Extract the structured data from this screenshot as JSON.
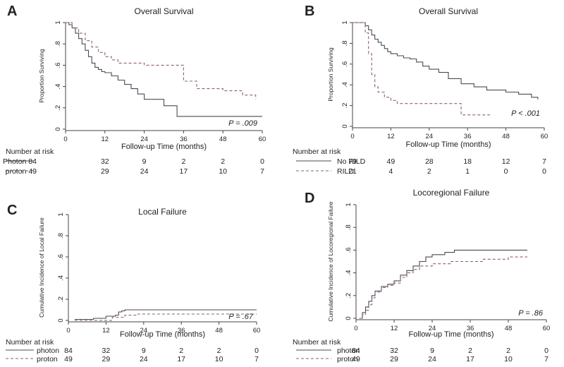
{
  "chart_data": [
    {
      "panel": "A",
      "type": "line",
      "title": "Overall Survival",
      "xlabel": "Follow-up Time (months)",
      "ylabel": "Proportion Surviving",
      "xlim": [
        0,
        60
      ],
      "ylim": [
        0,
        1
      ],
      "x_ticks": [
        "0",
        "12",
        "24",
        "36",
        "48",
        "60"
      ],
      "y_ticks": [
        "0",
        ".2",
        ".4",
        ".6",
        ".8",
        "1"
      ],
      "p_value": "P = .009",
      "series": [
        {
          "style": "solid",
          "x": [
            0,
            1,
            2,
            3,
            4,
            5,
            6,
            7,
            8,
            9,
            10,
            11,
            12,
            14,
            16,
            18,
            20,
            22,
            24,
            30,
            34,
            60
          ],
          "y": [
            1.0,
            0.98,
            0.95,
            0.9,
            0.85,
            0.8,
            0.74,
            0.68,
            0.62,
            0.58,
            0.56,
            0.54,
            0.53,
            0.5,
            0.46,
            0.42,
            0.38,
            0.33,
            0.28,
            0.22,
            0.12,
            0.12
          ]
        },
        {
          "style": "dashed",
          "x": [
            0,
            2,
            4,
            6,
            8,
            10,
            12,
            14,
            16,
            18,
            20,
            24,
            36,
            40,
            48,
            54,
            58
          ],
          "y": [
            1.0,
            0.95,
            0.9,
            0.83,
            0.77,
            0.72,
            0.68,
            0.65,
            0.62,
            0.62,
            0.62,
            0.6,
            0.45,
            0.38,
            0.36,
            0.32,
            0.28
          ]
        }
      ],
      "risk_table": {
        "header": "Number at risk",
        "rows": [
          {
            "label": "Photon 84",
            "style": "solid",
            "values": [
              "32",
              "9",
              "2",
              "2",
              "0"
            ]
          },
          {
            "label": "proton 49",
            "style": "dashed",
            "values": [
              "29",
              "24",
              "17",
              "10",
              "7"
            ]
          }
        ]
      }
    },
    {
      "panel": "B",
      "type": "line",
      "title": "Overall Survival",
      "xlabel": "Follow-up Time (months)",
      "ylabel": "Proportion Surviving",
      "xlim": [
        0,
        60
      ],
      "ylim": [
        0,
        1
      ],
      "x_ticks": [
        "0",
        "12",
        "24",
        "36",
        "48",
        "60"
      ],
      "y_ticks": [
        "0",
        ".2",
        ".4",
        ".6",
        ".8",
        "1"
      ],
      "p_value": "P < .001",
      "series": [
        {
          "style": "solid",
          "x": [
            0,
            3,
            4,
            5,
            6,
            7,
            8,
            9,
            10,
            11,
            12,
            14,
            16,
            18,
            20,
            22,
            24,
            27,
            30,
            34,
            38,
            42,
            48,
            52,
            56,
            58
          ],
          "y": [
            1.0,
            1.0,
            0.97,
            0.93,
            0.88,
            0.84,
            0.81,
            0.78,
            0.75,
            0.72,
            0.7,
            0.68,
            0.66,
            0.65,
            0.62,
            0.58,
            0.55,
            0.52,
            0.46,
            0.41,
            0.38,
            0.35,
            0.33,
            0.31,
            0.28,
            0.26
          ]
        },
        {
          "style": "dashed",
          "x": [
            0,
            3,
            4,
            5,
            6,
            7,
            8,
            10,
            12,
            14,
            20,
            32,
            34,
            43
          ],
          "y": [
            1.0,
            1.0,
            0.9,
            0.7,
            0.5,
            0.38,
            0.33,
            0.28,
            0.25,
            0.22,
            0.22,
            0.22,
            0.11,
            0.11
          ]
        }
      ],
      "risk_table": {
        "header": "Number at risk",
        "rows": [
          {
            "label": "No RILD",
            "style": "solid",
            "values": [
              "79",
              "49",
              "28",
              "18",
              "12",
              "7"
            ]
          },
          {
            "label": "RILD",
            "style": "dashed",
            "values": [
              "21",
              "4",
              "2",
              "1",
              "0",
              "0"
            ]
          }
        ]
      }
    },
    {
      "panel": "C",
      "type": "line",
      "title": "Local Failure",
      "xlabel": "Follow-up Time (months)",
      "ylabel": "Cumulative Incidence of Local Failure",
      "xlim": [
        0,
        60
      ],
      "ylim": [
        0,
        1
      ],
      "x_ticks": [
        "0",
        "12",
        "24",
        "36",
        "48",
        "60"
      ],
      "y_ticks": [
        "0",
        ".2",
        ".4",
        ".6",
        ".8",
        "1"
      ],
      "p_value": "P = .67",
      "series": [
        {
          "style": "solid",
          "x": [
            2,
            6,
            8,
            12,
            15,
            16,
            17,
            18,
            20,
            24,
            60
          ],
          "y": [
            0.01,
            0.01,
            0.02,
            0.04,
            0.05,
            0.08,
            0.09,
            0.1,
            0.1,
            0.1,
            0.1
          ]
        },
        {
          "style": "dashed",
          "x": [
            2,
            12,
            14,
            18,
            22,
            60
          ],
          "y": [
            0.0,
            0.0,
            0.03,
            0.05,
            0.06,
            0.06
          ]
        }
      ],
      "risk_table": {
        "header": "Number at risk",
        "rows": [
          {
            "label": "photon",
            "style": "solid",
            "values": [
              "84",
              "32",
              "9",
              "2",
              "2",
              "0"
            ]
          },
          {
            "label": "proton",
            "style": "dashed",
            "values": [
              "49",
              "29",
              "24",
              "17",
              "10",
              "7"
            ]
          }
        ]
      }
    },
    {
      "panel": "D",
      "type": "line",
      "title": "Locoregional Failure",
      "xlabel": "Follow-up Time (months)",
      "ylabel": "Cumulative Incidence of Locoregional Failure",
      "xlim": [
        0,
        60
      ],
      "ylim": [
        0,
        1
      ],
      "x_ticks": [
        "0",
        "12",
        "24",
        "36",
        "48",
        "60"
      ],
      "y_ticks": [
        "0",
        ".2",
        ".4",
        ".6",
        ".8",
        "1"
      ],
      "p_value": "P = .86",
      "series": [
        {
          "style": "solid",
          "x": [
            1,
            2,
            3,
            4,
            5,
            6,
            8,
            10,
            12,
            14,
            16,
            18,
            20,
            22,
            24,
            28,
            31,
            40,
            54
          ],
          "y": [
            0.0,
            0.05,
            0.1,
            0.15,
            0.2,
            0.24,
            0.28,
            0.3,
            0.33,
            0.38,
            0.42,
            0.46,
            0.5,
            0.54,
            0.56,
            0.58,
            0.6,
            0.6,
            0.6
          ]
        },
        {
          "style": "dashed",
          "x": [
            1,
            2,
            3,
            4,
            5,
            6,
            8,
            10,
            12,
            14,
            16,
            18,
            20,
            24,
            30,
            40,
            48,
            54
          ],
          "y": [
            0.0,
            0.03,
            0.07,
            0.12,
            0.18,
            0.23,
            0.27,
            0.29,
            0.31,
            0.36,
            0.4,
            0.43,
            0.46,
            0.48,
            0.5,
            0.52,
            0.54,
            0.54
          ]
        }
      ],
      "risk_table": {
        "header": "Number at risk",
        "rows": [
          {
            "label": "photon",
            "style": "solid",
            "values": [
              "84",
              "32",
              "9",
              "2",
              "2",
              "0"
            ]
          },
          {
            "label": "proton",
            "style": "dashed",
            "values": [
              "49",
              "29",
              "24",
              "17",
              "10",
              "7"
            ]
          }
        ]
      }
    }
  ]
}
